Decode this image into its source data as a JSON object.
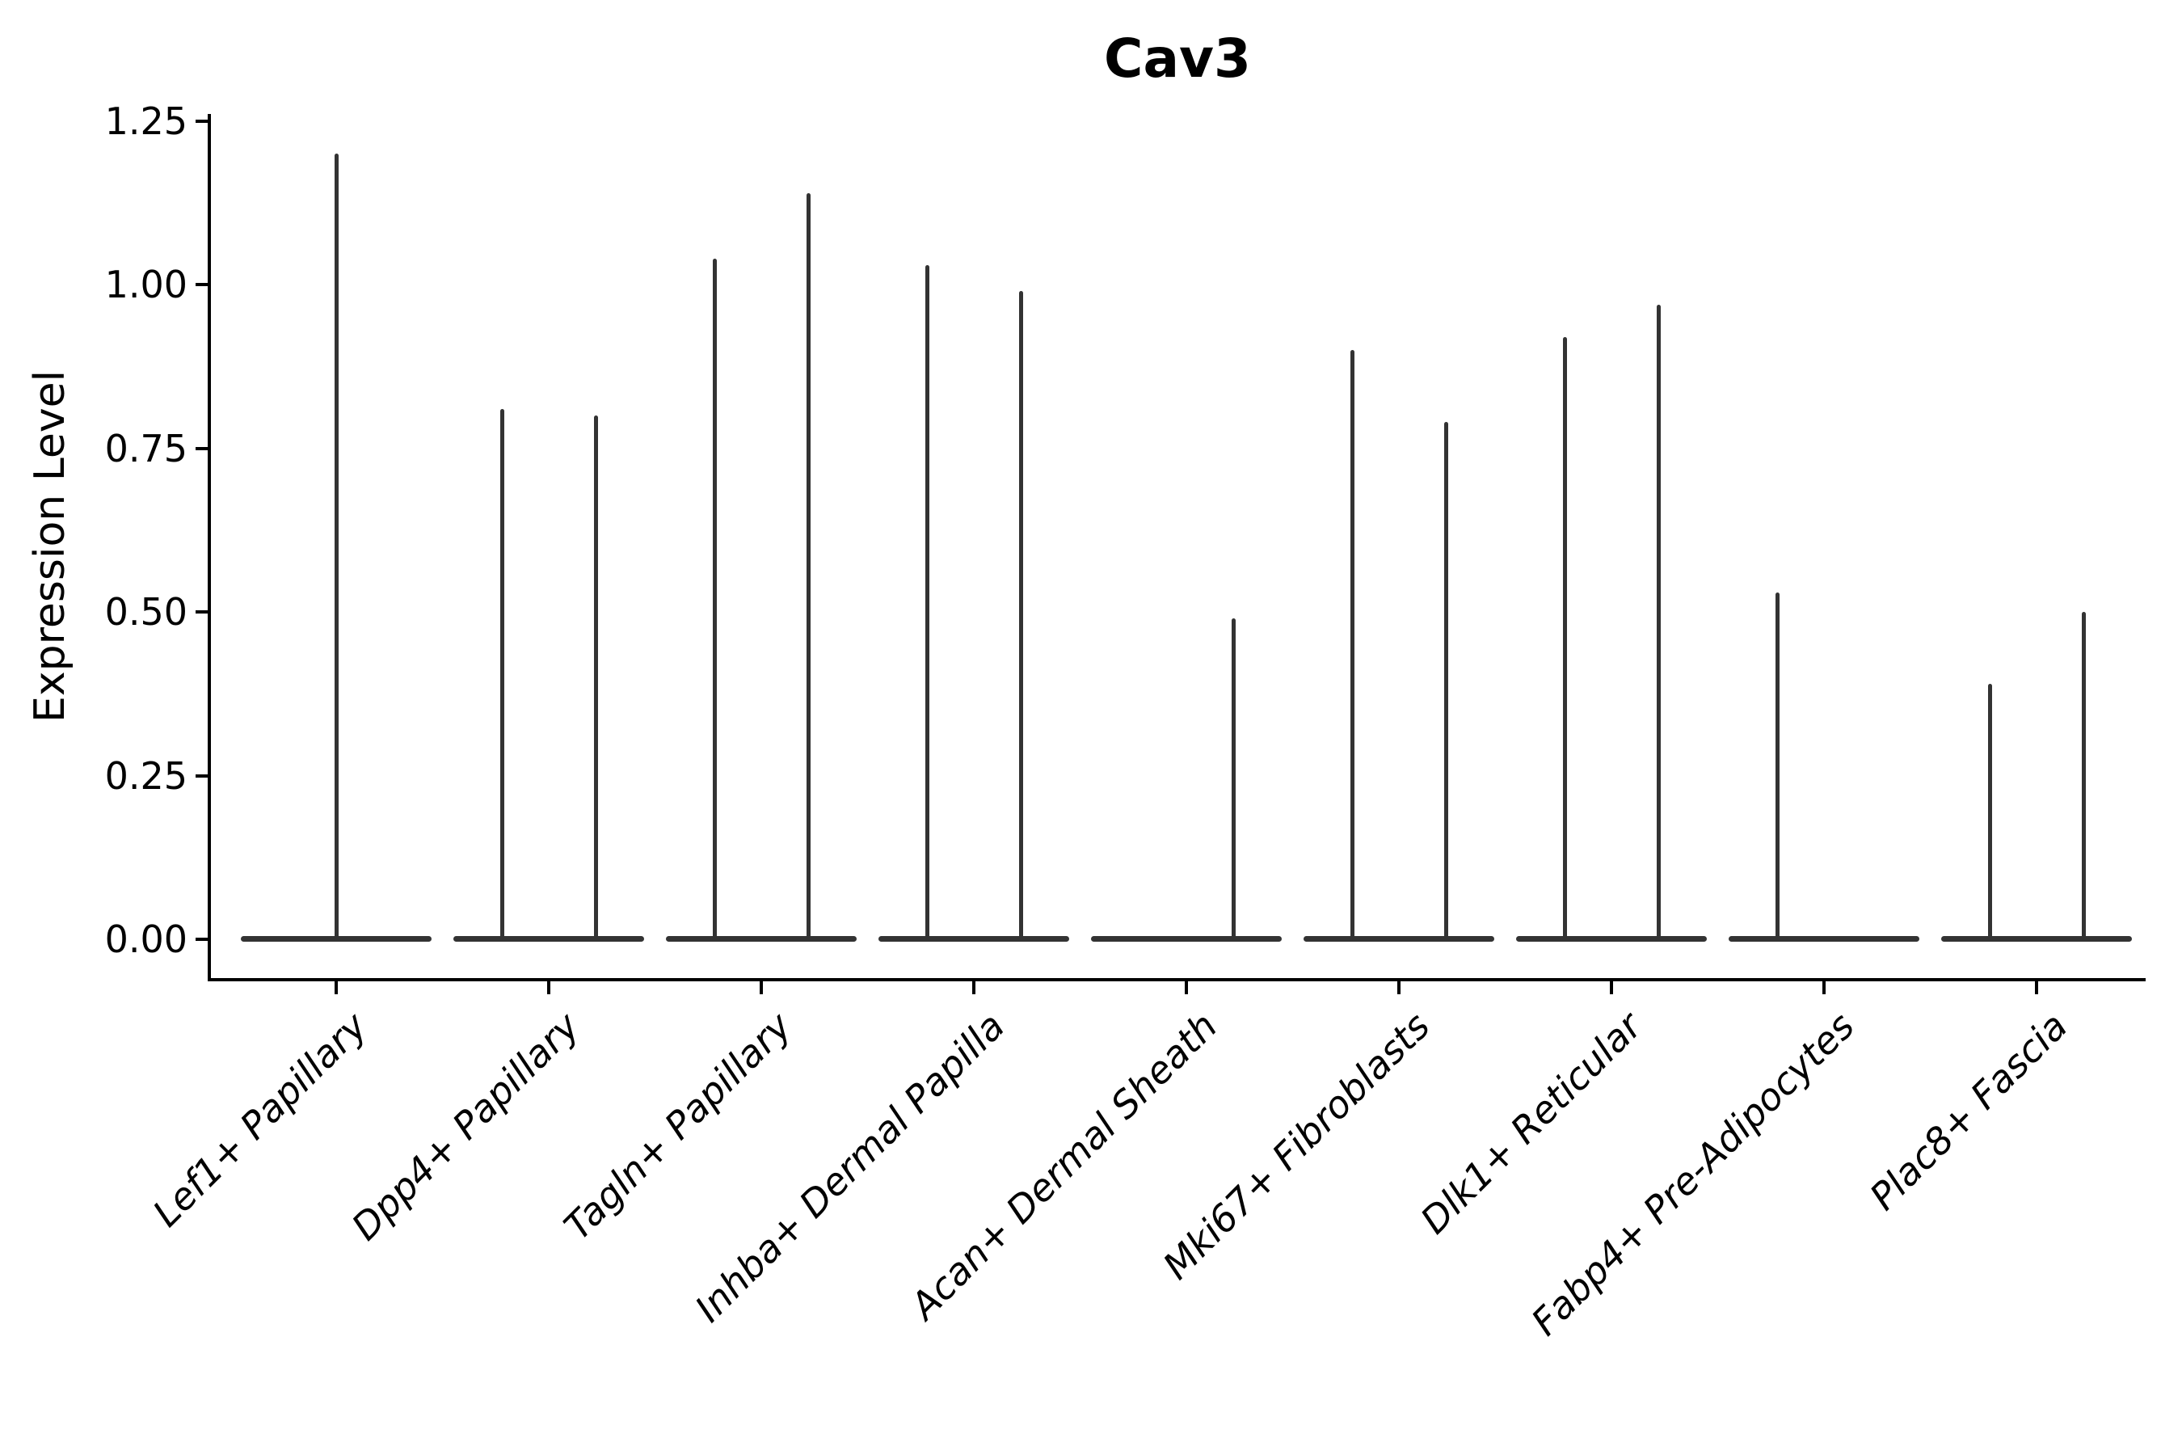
{
  "chart_data": {
    "type": "violin",
    "title": "Cav3",
    "xlabel": "",
    "ylabel": "Expression Level",
    "ylim": [
      -0.06,
      1.26
    ],
    "yticks": [
      0.0,
      0.25,
      0.5,
      0.75,
      1.0,
      1.25
    ],
    "yticklabels": [
      "0.00",
      "0.25",
      "0.50",
      "0.75",
      "1.00",
      "1.25"
    ],
    "grid": false,
    "legend": "none",
    "violin_color": "#333333",
    "axis_color": "#000000",
    "description": "Violin plot of Cav3 expression; each category shows flat zero-density base with thin spikes up to the maximum expression value. Two-spike categories contain paired (split) violins; max value of each spike listed.",
    "categories": [
      {
        "label": "Lef1+ Papillary",
        "violins": [
          {
            "side": "center",
            "max": 1.2
          }
        ]
      },
      {
        "label": "Dpp4+ Papillary",
        "violins": [
          {
            "side": "left",
            "max": 0.81
          },
          {
            "side": "right",
            "max": 0.8
          }
        ]
      },
      {
        "label": "Tagln+ Papillary",
        "violins": [
          {
            "side": "left",
            "max": 1.04
          },
          {
            "side": "right",
            "max": 1.14
          }
        ]
      },
      {
        "label": "Inhba+ Dermal Papilla",
        "violins": [
          {
            "side": "left",
            "max": 1.03
          },
          {
            "side": "right",
            "max": 0.99
          }
        ]
      },
      {
        "label": "Acan+ Dermal Sheath",
        "violins": [
          {
            "side": "right",
            "max": 0.49
          }
        ]
      },
      {
        "label": "Mki67+ Fibroblasts",
        "violins": [
          {
            "side": "left",
            "max": 0.9
          },
          {
            "side": "right",
            "max": 0.79
          }
        ]
      },
      {
        "label": "Dlk1+ Reticular",
        "violins": [
          {
            "side": "left",
            "max": 0.92
          },
          {
            "side": "right",
            "max": 0.97
          }
        ]
      },
      {
        "label": "Fabp4+ Pre-Adipocytes",
        "violins": [
          {
            "side": "left",
            "max": 0.53
          }
        ]
      },
      {
        "label": "Plac8+ Fascia",
        "violins": [
          {
            "side": "left",
            "max": 0.39
          },
          {
            "side": "right",
            "max": 0.5
          }
        ]
      }
    ]
  }
}
